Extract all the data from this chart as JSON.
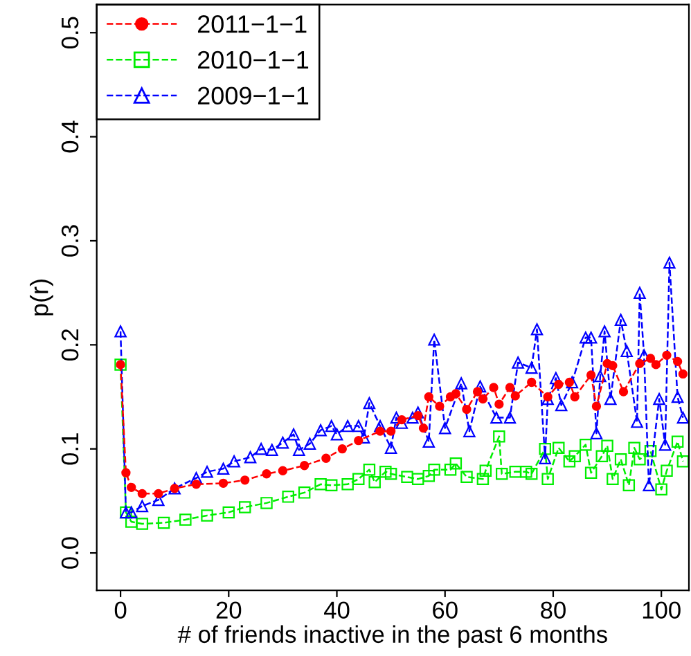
{
  "chart_data": {
    "type": "line",
    "xlabel": "# of friends inactive in the past 6 months",
    "ylabel": "p(r)",
    "xlim": [
      -4.4,
      105.1
    ],
    "ylim": [
      -0.036,
      0.527
    ],
    "xticks": [
      0,
      20,
      40,
      60,
      80,
      100
    ],
    "yticks": [
      {
        "value": 0.0,
        "label": "0.0"
      },
      0.1,
      0.2,
      0.3,
      0.4,
      0.5
    ],
    "grid": false,
    "legend": "top left",
    "line_style": "dashed",
    "series": [
      {
        "name": "2011−1−1",
        "color": "#ff0000",
        "marker": "circle",
        "x": [
          0,
          1,
          2,
          4,
          7,
          10,
          14,
          19,
          23,
          27,
          30,
          34,
          38,
          41,
          44,
          48,
          50,
          52,
          55,
          56,
          57,
          59,
          61,
          62,
          64,
          66,
          67,
          69,
          70,
          72,
          73,
          76,
          79,
          81,
          83,
          84,
          87,
          88,
          90,
          91,
          93,
          96,
          98,
          99,
          101,
          103,
          104
        ],
        "values": [
          0.181,
          0.077,
          0.063,
          0.057,
          0.057,
          0.062,
          0.066,
          0.067,
          0.07,
          0.076,
          0.079,
          0.084,
          0.091,
          0.1,
          0.108,
          0.117,
          0.117,
          0.128,
          0.132,
          0.12,
          0.15,
          0.141,
          0.15,
          0.153,
          0.138,
          0.155,
          0.148,
          0.159,
          0.143,
          0.159,
          0.151,
          0.164,
          0.15,
          0.162,
          0.164,
          0.15,
          0.171,
          0.141,
          0.182,
          0.18,
          0.155,
          0.182,
          0.187,
          0.181,
          0.19,
          0.184,
          0.172
        ]
      },
      {
        "name": "2010−1−1",
        "color": "#00ee00",
        "marker": "square",
        "x": [
          0,
          1,
          2,
          4,
          8,
          12,
          16,
          20,
          23,
          27,
          31,
          34,
          37,
          39,
          42,
          44,
          46,
          47,
          49,
          50,
          53,
          55,
          57,
          58,
          61,
          62,
          64,
          67,
          67.5,
          70,
          70.5,
          73,
          75,
          76,
          78.5,
          79,
          81,
          83,
          84,
          86,
          87,
          89,
          90,
          91,
          92.5,
          94,
          95,
          96,
          98,
          100,
          101,
          103,
          104
        ],
        "values": [
          0.181,
          0.039,
          0.03,
          0.028,
          0.029,
          0.032,
          0.036,
          0.039,
          0.044,
          0.048,
          0.054,
          0.058,
          0.066,
          0.065,
          0.066,
          0.071,
          0.08,
          0.068,
          0.078,
          0.076,
          0.073,
          0.071,
          0.074,
          0.08,
          0.08,
          0.086,
          0.073,
          0.071,
          0.079,
          0.112,
          0.076,
          0.078,
          0.078,
          0.076,
          0.1,
          0.071,
          0.101,
          0.088,
          0.093,
          0.104,
          0.077,
          0.093,
          0.103,
          0.071,
          0.09,
          0.065,
          0.101,
          0.09,
          0.098,
          0.061,
          0.079,
          0.107,
          0.088
        ]
      },
      {
        "name": "2009−1−1",
        "color": "#0000ff",
        "marker": "triangle",
        "x": [
          0,
          1,
          2,
          4,
          7,
          10,
          14,
          16,
          19,
          21,
          24,
          26,
          28,
          30,
          32,
          33,
          35,
          37,
          39,
          40,
          42,
          44,
          45,
          46,
          48,
          50,
          51,
          52,
          54,
          55,
          57,
          58,
          60,
          63,
          64.5,
          66.5,
          69.5,
          72,
          73.5,
          76,
          77,
          78.5,
          79,
          80.5,
          81.5,
          83.5,
          86,
          87,
          88,
          88.7,
          89.5,
          90.6,
          92.5,
          93.6,
          95.5,
          96,
          96.8,
          97.7,
          99.6,
          100.7,
          101.5,
          103,
          104
        ],
        "values": [
          0.213,
          0.039,
          0.039,
          0.045,
          0.051,
          0.062,
          0.072,
          0.078,
          0.081,
          0.088,
          0.092,
          0.1,
          0.099,
          0.106,
          0.114,
          0.099,
          0.105,
          0.118,
          0.122,
          0.114,
          0.122,
          0.122,
          0.111,
          0.144,
          0.122,
          0.101,
          0.13,
          0.125,
          0.13,
          0.135,
          0.107,
          0.205,
          0.12,
          0.163,
          0.117,
          0.16,
          0.13,
          0.13,
          0.183,
          0.178,
          0.215,
          0.091,
          0.148,
          0.168,
          0.142,
          0.164,
          0.207,
          0.207,
          0.115,
          0.17,
          0.213,
          0.148,
          0.224,
          0.194,
          0.126,
          0.25,
          0.19,
          0.065,
          0.148,
          0.104,
          0.279,
          0.15,
          0.13
        ]
      }
    ]
  }
}
